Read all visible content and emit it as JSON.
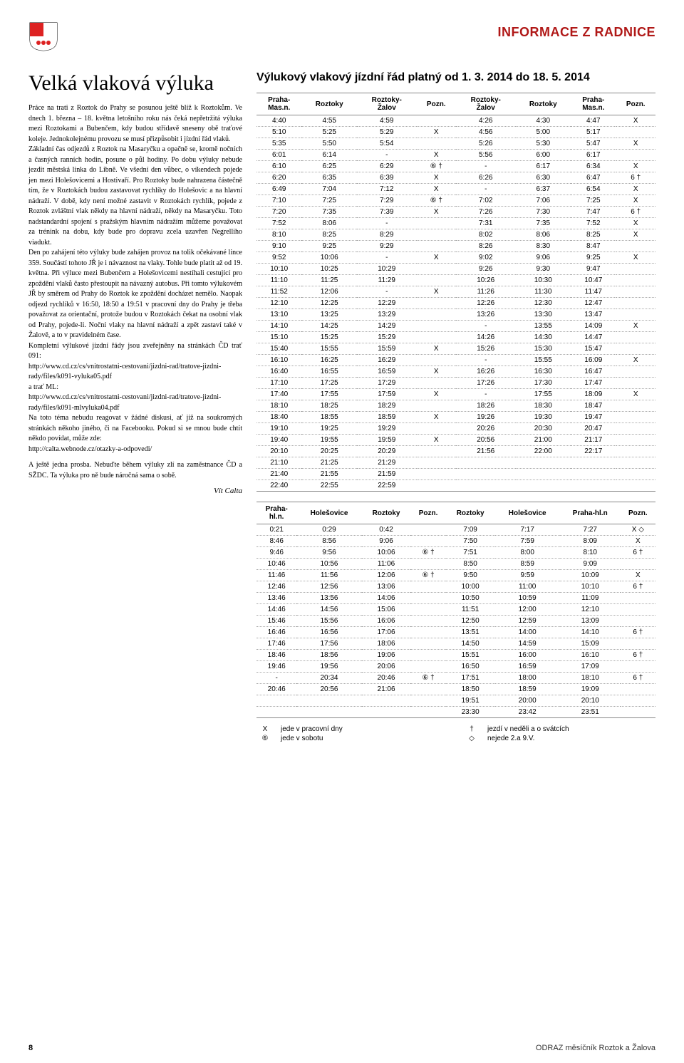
{
  "section_title": "INFORMACE Z RADNICE",
  "article": {
    "title": "Velká vlaková výluka",
    "paragraphs": [
      "Práce na trati z Roztok do Prahy se posunou ještě blíž k Roztokům. Ve dnech 1. března – 18. května letošního roku nás čeká nepřetržitá výluka mezi Roztokami a Bubenčem, kdy budou střídavě sneseny obě traťové koleje. Jednokolejnému provozu se musí přizpůsobit i jízdní řád vlaků.",
      "Základní čas odjezdů z Roztok na Masaryčku a opačně se, kromě nočních a časných ranních hodin, posune o půl hodiny. Po dobu výluky nebude jezdit městská linka do Libně. Ve všední den vůbec, o víkendech pojede jen mezi Holešovicemi a Hostivaří. Pro Roztoky bude nahrazena částečně tím, že v Roztokách budou zastavovat rychlíky do Holešovic a na hlavní nádraží. V době, kdy není možné zastavit v Roztokách rychlík, pojede z Roztok zvláštní vlak někdy na hlavní nádraží, někdy na Masaryčku. Toto nadstandardní spojení s pražským hlavním nádražím můžeme považovat za trénink na dobu, kdy bude pro dopravu zcela uzavřen Negrelliho viadukt.",
      "Den po zahájení této výluky bude zahájen provoz na tolik očekávané lince 359. Součástí tohoto JŘ je i návaznost na vlaky. Tohle bude platit až od 19. května. Při výluce mezi Bubenčem a Holešovicemi nestíhali cestující pro zpoždění vlaků často přestoupit na návazný autobus. Při tomto výlukovém JŘ by směrem od Prahy do Roztok ke zpoždění docházet nemělo. Naopak odjezd rychlíků v 16:50, 18:50 a 19:51 v pracovní dny do Prahy je třeba považovat za orientační, protože budou v Roztokách čekat na osobní vlak od Prahy, pojede-li. Noční vlaky na hlavní nádraží a zpět zastaví také v Žalově, a to v pravidelném čase.",
      "Kompletní výlukové jízdní řády jsou zveřejněny na stránkách ČD trať 091:",
      "http://www.cd.cz/cs/vnitrostatni-cestovani/jizdni-rad/tratove-jizdni-rady/files/k091-vyluka05.pdf",
      "a trať ML:",
      "http://www.cd.cz/cs/vnitrostatni-cestovani/jizdni-rad/tratove-jizdni-rady/files/k091-mlvyluka04.pdf",
      "Na toto téma nebudu reagovat v žádné diskusi, ať již na soukromých stránkách někoho jiného, či na Facebooku. Pokud si se mnou bude chtít někdo povídat, může zde:",
      "http://calta.webnode.cz/otazky-a-odpovedi/",
      "A ještě jedna prosba. Nebuďte během výluky zlí na zaměstnance ČD a SŽDC. Ta výluka pro ně bude náročná sama o sobě."
    ],
    "author": "Vít Calta"
  },
  "timetable_title": "Výlukový vlakový jízdní řád platný od 1. 3. 2014 do 18. 5. 2014",
  "table1": {
    "headers": [
      "Praha-\nMas.n.",
      "Roztoky",
      "Roztoky-\nŽalov",
      "Pozn.",
      "Roztoky-\nŽalov",
      "Roztoky",
      "Praha-\nMas.n.",
      "Pozn."
    ],
    "rows": [
      [
        "4:40",
        "4:55",
        "4:59",
        "",
        "4:26",
        "4:30",
        "4:47",
        "X"
      ],
      [
        "5:10",
        "5:25",
        "5:29",
        "X",
        "4:56",
        "5:00",
        "5:17",
        ""
      ],
      [
        "5:35",
        "5:50",
        "5:54",
        "",
        "5:26",
        "5:30",
        "5:47",
        "X"
      ],
      [
        "6:01",
        "6:14",
        "-",
        "X",
        "5:56",
        "6:00",
        "6:17",
        ""
      ],
      [
        "6:10",
        "6:25",
        "6:29",
        "⑥ †",
        "-",
        "6:17",
        "6:34",
        "X"
      ],
      [
        "6:20",
        "6:35",
        "6:39",
        "X",
        "6:26",
        "6:30",
        "6:47",
        "6 †"
      ],
      [
        "6:49",
        "7:04",
        "7:12",
        "X",
        "-",
        "6:37",
        "6:54",
        "X"
      ],
      [
        "7:10",
        "7:25",
        "7:29",
        "⑥ †",
        "7:02",
        "7:06",
        "7:25",
        "X"
      ],
      [
        "7:20",
        "7:35",
        "7:39",
        "X",
        "7:26",
        "7:30",
        "7:47",
        "6 †"
      ],
      [
        "7:52",
        "8:06",
        "-",
        "",
        "7:31",
        "7:35",
        "7:52",
        "X"
      ],
      [
        "8:10",
        "8:25",
        "8:29",
        "",
        "8:02",
        "8:06",
        "8:25",
        "X"
      ],
      [
        "9:10",
        "9:25",
        "9:29",
        "",
        "8:26",
        "8:30",
        "8:47",
        ""
      ],
      [
        "9:52",
        "10:06",
        "-",
        "X",
        "9:02",
        "9:06",
        "9:25",
        "X"
      ],
      [
        "10:10",
        "10:25",
        "10:29",
        "",
        "9:26",
        "9:30",
        "9:47",
        ""
      ],
      [
        "11:10",
        "11:25",
        "11:29",
        "",
        "10:26",
        "10:30",
        "10:47",
        ""
      ],
      [
        "11:52",
        "12:06",
        "-",
        "X",
        "11:26",
        "11:30",
        "11:47",
        ""
      ],
      [
        "12:10",
        "12:25",
        "12:29",
        "",
        "12:26",
        "12:30",
        "12:47",
        ""
      ],
      [
        "13:10",
        "13:25",
        "13:29",
        "",
        "13:26",
        "13:30",
        "13:47",
        ""
      ],
      [
        "14:10",
        "14:25",
        "14:29",
        "",
        "-",
        "13:55",
        "14:09",
        "X"
      ],
      [
        "15:10",
        "15:25",
        "15:29",
        "",
        "14:26",
        "14:30",
        "14:47",
        ""
      ],
      [
        "15:40",
        "15:55",
        "15:59",
        "X",
        "15:26",
        "15:30",
        "15:47",
        ""
      ],
      [
        "16:10",
        "16:25",
        "16:29",
        "",
        "-",
        "15:55",
        "16:09",
        "X"
      ],
      [
        "16:40",
        "16:55",
        "16:59",
        "X",
        "16:26",
        "16:30",
        "16:47",
        ""
      ],
      [
        "17:10",
        "17:25",
        "17:29",
        "",
        "17:26",
        "17:30",
        "17:47",
        ""
      ],
      [
        "17:40",
        "17:55",
        "17:59",
        "X",
        "-",
        "17:55",
        "18:09",
        "X"
      ],
      [
        "18:10",
        "18:25",
        "18:29",
        "",
        "18:26",
        "18:30",
        "18:47",
        ""
      ],
      [
        "18:40",
        "18:55",
        "18:59",
        "X",
        "19:26",
        "19:30",
        "19:47",
        ""
      ],
      [
        "19:10",
        "19:25",
        "19:29",
        "",
        "20:26",
        "20:30",
        "20:47",
        ""
      ],
      [
        "19:40",
        "19:55",
        "19:59",
        "X",
        "20:56",
        "21:00",
        "21:17",
        ""
      ],
      [
        "20:10",
        "20:25",
        "20:29",
        "",
        "21:56",
        "22:00",
        "22:17",
        ""
      ],
      [
        "21:10",
        "21:25",
        "21:29",
        "",
        "",
        "",
        "",
        ""
      ],
      [
        "21:40",
        "21:55",
        "21:59",
        "",
        "",
        "",
        "",
        ""
      ],
      [
        "22:40",
        "22:55",
        "22:59",
        "",
        "",
        "",
        "",
        ""
      ]
    ]
  },
  "table2": {
    "headers": [
      "Praha-\nhl.n.",
      "Holešovice",
      "Roztoky",
      "Pozn.",
      "Roztoky",
      "Holešovice",
      "Praha-hl.n",
      "Pozn."
    ],
    "rows": [
      [
        "0:21",
        "0:29",
        "0:42",
        "",
        "7:09",
        "7:17",
        "7:27",
        "X ◇"
      ],
      [
        "8:46",
        "8:56",
        "9:06",
        "",
        "7:50",
        "7:59",
        "8:09",
        "X"
      ],
      [
        "9:46",
        "9:56",
        "10:06",
        "⑥ †",
        "7:51",
        "8:00",
        "8:10",
        "6 †"
      ],
      [
        "10:46",
        "10:56",
        "11:06",
        "",
        "8:50",
        "8:59",
        "9:09",
        ""
      ],
      [
        "11:46",
        "11:56",
        "12:06",
        "⑥ †",
        "9:50",
        "9:59",
        "10:09",
        "X"
      ],
      [
        "12:46",
        "12:56",
        "13:06",
        "",
        "10:00",
        "11:00",
        "10:10",
        "6 †"
      ],
      [
        "13:46",
        "13:56",
        "14:06",
        "",
        "10:50",
        "10:59",
        "11:09",
        ""
      ],
      [
        "14:46",
        "14:56",
        "15:06",
        "",
        "11:51",
        "12:00",
        "12:10",
        ""
      ],
      [
        "15:46",
        "15:56",
        "16:06",
        "",
        "12:50",
        "12:59",
        "13:09",
        ""
      ],
      [
        "16:46",
        "16:56",
        "17:06",
        "",
        "13:51",
        "14:00",
        "14:10",
        "6 †"
      ],
      [
        "17:46",
        "17:56",
        "18:06",
        "",
        "14:50",
        "14:59",
        "15:09",
        ""
      ],
      [
        "18:46",
        "18:56",
        "19:06",
        "",
        "15:51",
        "16:00",
        "16:10",
        "6 †"
      ],
      [
        "19:46",
        "19:56",
        "20:06",
        "",
        "16:50",
        "16:59",
        "17:09",
        ""
      ],
      [
        "-",
        "20:34",
        "20:46",
        "⑥ †",
        "17:51",
        "18:00",
        "18:10",
        "6 †"
      ],
      [
        "20:46",
        "20:56",
        "21:06",
        "",
        "18:50",
        "18:59",
        "19:09",
        ""
      ],
      [
        "",
        "",
        "",
        "",
        "19:51",
        "20:00",
        "20:10",
        ""
      ],
      [
        "",
        "",
        "",
        "",
        "23:30",
        "23:42",
        "23:51",
        ""
      ]
    ]
  },
  "legend": {
    "left": [
      {
        "sym": "X",
        "text": "jede v pracovní dny"
      },
      {
        "sym": "⑥",
        "text": "jede v sobotu"
      }
    ],
    "right": [
      {
        "sym": "†",
        "text": "jezdí v neděli a o svátcích"
      },
      {
        "sym": "◇",
        "text": "nejede 2.a 9.V."
      }
    ]
  },
  "footer": {
    "page_num": "8",
    "text": "ODRAZ měsíčník Roztok a Žalova"
  },
  "colors": {
    "accent": "#b01817",
    "text": "#000000",
    "border": "#888888",
    "dotted": "#aaaaaa"
  }
}
